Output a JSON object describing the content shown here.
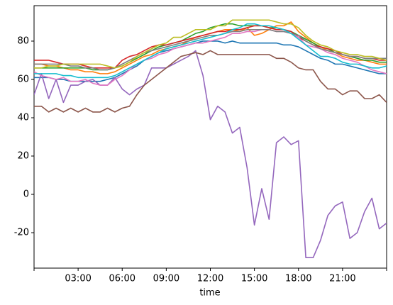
{
  "chart_data": {
    "type": "line",
    "xlabel": "time",
    "x": [
      0,
      0.5,
      1,
      1.5,
      2,
      2.5,
      3,
      3.5,
      4,
      4.5,
      5,
      5.5,
      6,
      6.5,
      7,
      7.5,
      8,
      8.5,
      9,
      9.5,
      10,
      10.5,
      11,
      11.5,
      12,
      12.5,
      13,
      13.5,
      14,
      14.5,
      15,
      15.5,
      16,
      16.5,
      17,
      17.5,
      18,
      18.5,
      19,
      19.5,
      20,
      20.5,
      21,
      21.5,
      22,
      22.5,
      23,
      23.5,
      24
    ],
    "xlim": [
      0,
      24
    ],
    "xticks": [
      {
        "value": 0,
        "label": null
      },
      {
        "value": 3,
        "label": "03:00"
      },
      {
        "value": 6,
        "label": "06:00"
      },
      {
        "value": 9,
        "label": "09:00"
      },
      {
        "value": 12,
        "label": "12:00"
      },
      {
        "value": 15,
        "label": "15:00"
      },
      {
        "value": 18,
        "label": "18:00"
      },
      {
        "value": 21,
        "label": "21:00"
      },
      {
        "value": 24,
        "label": null
      }
    ],
    "ylim": [
      -38.5,
      98.5
    ],
    "yticks": [
      -20,
      0,
      20,
      40,
      60,
      80
    ],
    "series": [
      {
        "color": "#1f77b4",
        "values": [
          61,
          61,
          61,
          60,
          60,
          59,
          59,
          59,
          59,
          59,
          60,
          61,
          63,
          65,
          67,
          70,
          72,
          74,
          75,
          76,
          77,
          78,
          79,
          80,
          80,
          80,
          79,
          80,
          79,
          79,
          79,
          79,
          79,
          79,
          78,
          78,
          77,
          75,
          73,
          71,
          70,
          68,
          68,
          67,
          66,
          65,
          64,
          63,
          63
        ]
      },
      {
        "color": "#ff7f0e",
        "values": [
          68,
          68,
          67,
          67,
          66,
          65,
          65,
          64,
          64,
          63,
          63,
          64,
          66,
          68,
          70,
          72,
          73,
          75,
          76,
          77,
          78,
          80,
          82,
          83,
          84,
          85,
          86,
          86,
          85,
          87,
          83,
          84,
          86,
          88,
          88,
          90,
          85,
          82,
          79,
          77,
          75,
          74,
          72,
          71,
          70,
          70,
          69,
          68,
          68
        ]
      },
      {
        "color": "#2ca02c",
        "values": [
          66,
          66,
          66,
          66,
          66,
          66,
          66,
          66,
          65,
          65,
          65,
          66,
          67,
          69,
          71,
          73,
          75,
          77,
          78,
          79,
          80,
          82,
          84,
          85,
          87,
          88,
          89,
          89,
          88,
          88,
          88,
          88,
          87,
          87,
          86,
          85,
          83,
          81,
          79,
          77,
          76,
          74,
          73,
          72,
          71,
          70,
          70,
          69,
          69
        ]
      },
      {
        "color": "#d62728",
        "values": [
          70,
          70,
          70,
          69,
          68,
          68,
          68,
          67,
          66,
          66,
          66,
          66,
          70,
          72,
          73,
          75,
          77,
          78,
          78,
          79,
          80,
          81,
          82,
          83,
          84,
          85,
          85,
          86,
          86,
          87,
          88,
          88,
          87,
          86,
          86,
          85,
          82,
          80,
          78,
          77,
          76,
          75,
          73,
          72,
          72,
          71,
          71,
          70,
          70
        ]
      },
      {
        "color": "#9467bd",
        "values": [
          52,
          63,
          50,
          60,
          48,
          57,
          57,
          59,
          60,
          57,
          57,
          61,
          55,
          52,
          55,
          57,
          66,
          66,
          66,
          68,
          70,
          72,
          75,
          62,
          39,
          46,
          43,
          32,
          35,
          14,
          -16,
          3,
          -13,
          27,
          30,
          26,
          28,
          -33,
          -33,
          -24,
          -11,
          -6,
          -4,
          -23,
          -20,
          -9,
          -2,
          -18,
          -15
        ]
      },
      {
        "color": "#8c564b",
        "values": [
          46,
          46,
          43,
          45,
          43,
          45,
          43,
          45,
          43,
          43,
          45,
          43,
          45,
          46,
          52,
          57,
          60,
          63,
          66,
          69,
          72,
          73,
          74,
          73,
          75,
          73,
          73,
          73,
          73,
          73,
          73,
          73,
          73,
          71,
          71,
          69,
          66,
          65,
          65,
          59,
          55,
          55,
          52,
          54,
          54,
          50,
          50,
          52,
          48
        ]
      },
      {
        "color": "#e377c2",
        "values": [
          64,
          62,
          61,
          60,
          61,
          59,
          59,
          60,
          58,
          57,
          57,
          60,
          62,
          65,
          68,
          70,
          71,
          73,
          74,
          76,
          77,
          78,
          79,
          79,
          80,
          81,
          82,
          84,
          84,
          85,
          85,
          86,
          86,
          85,
          85,
          84,
          82,
          78,
          77,
          76,
          74,
          73,
          71,
          70,
          69,
          67,
          65,
          64,
          63
        ]
      },
      {
        "color": "#7f7f7f",
        "values": [
          68,
          68,
          68,
          68,
          68,
          67,
          67,
          66,
          66,
          65,
          65,
          66,
          68,
          70,
          72,
          74,
          75,
          76,
          77,
          78,
          79,
          80,
          81,
          82,
          83,
          83,
          84,
          85,
          85,
          86,
          86,
          86,
          86,
          85,
          85,
          84,
          83,
          80,
          78,
          76,
          75,
          74,
          73,
          72,
          72,
          71,
          71,
          71,
          71
        ]
      },
      {
        "color": "#bcbd22",
        "values": [
          66,
          66,
          67,
          67,
          68,
          68,
          68,
          68,
          68,
          68,
          67,
          66,
          67,
          69,
          72,
          74,
          76,
          78,
          79,
          82,
          82,
          84,
          86,
          86,
          86,
          88,
          88,
          91,
          91,
          91,
          91,
          91,
          91,
          90,
          89,
          89,
          87,
          83,
          80,
          78,
          77,
          75,
          74,
          73,
          73,
          72,
          72,
          71,
          70
        ]
      },
      {
        "color": "#17becf",
        "values": [
          63,
          63,
          63,
          63,
          62,
          62,
          61,
          61,
          61,
          61,
          61,
          62,
          64,
          66,
          68,
          70,
          72,
          74,
          76,
          77,
          78,
          79,
          80,
          81,
          82,
          83,
          84,
          86,
          87,
          89,
          89,
          88,
          88,
          87,
          86,
          84,
          81,
          78,
          75,
          72,
          72,
          71,
          69,
          68,
          68,
          67,
          66,
          66,
          67
        ]
      }
    ]
  }
}
